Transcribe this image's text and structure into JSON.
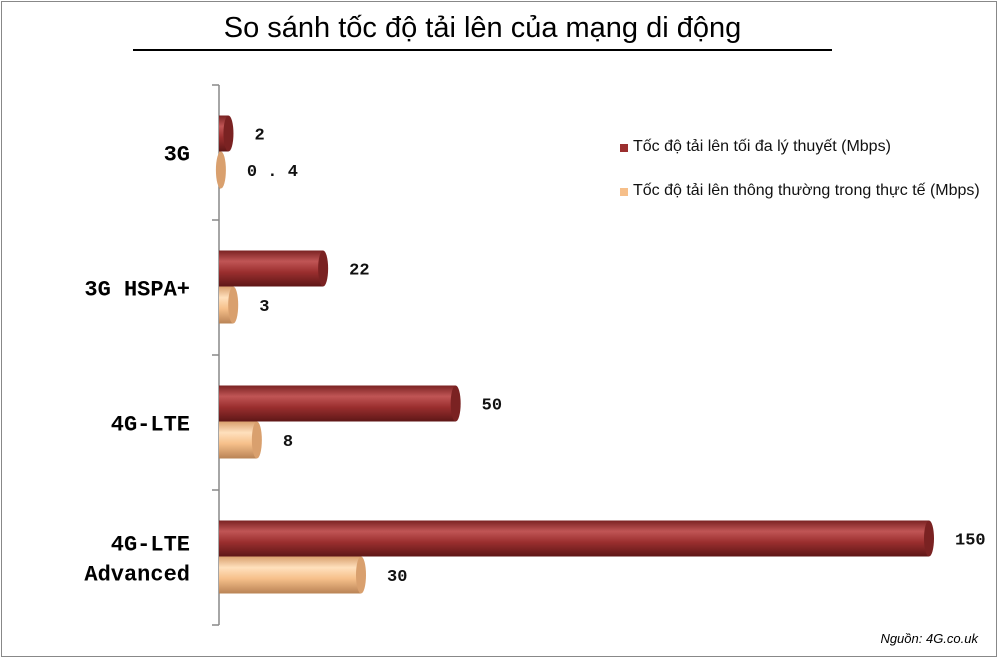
{
  "chart_data": {
    "type": "bar",
    "orientation": "horizontal",
    "style": "3d-cylinder",
    "title": "So sánh tốc độ tải lên của mạng di động",
    "categories": [
      "3G",
      "3G HSPA+",
      "4G-LTE",
      "4G-LTE Advanced"
    ],
    "series": [
      {
        "name": "Tốc độ tải lên tối đa lý thuyết (Mbps)",
        "color": "#9b2f2f",
        "values": [
          2,
          22,
          50,
          150
        ],
        "labels": [
          "2",
          "22",
          "50",
          "150"
        ]
      },
      {
        "name": "Tốc độ tải lên thông thường trong thực tế (Mbps)",
        "color": "#f6bf8a",
        "values": [
          0.4,
          3,
          8,
          30
        ],
        "labels": [
          "0.4",
          "3",
          "8",
          "30"
        ]
      }
    ],
    "xlim": [
      0,
      150
    ],
    "grid": false,
    "legend_position": "right"
  },
  "source": "Nguồn: 4G.co.uk"
}
